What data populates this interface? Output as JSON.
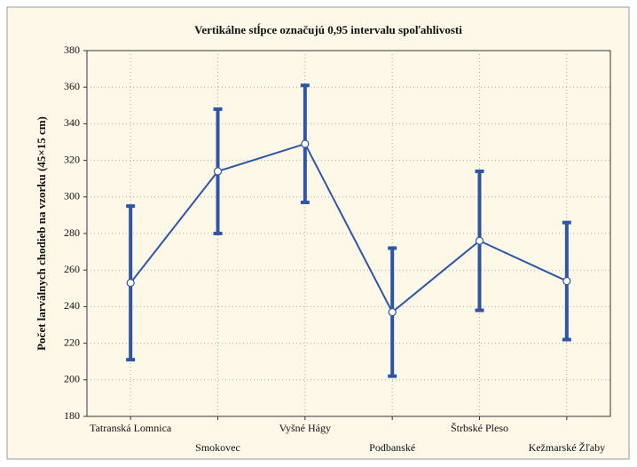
{
  "chart_data": {
    "type": "line",
    "title": "Vertikálne stĺpce označujú 0,95 intervalu spoľahlivosti",
    "y_label": "Počet larválnych chodieb na vzorku (45×15 cm)",
    "categories": [
      "Tatranská Lomnica",
      "Smokovec",
      "Vyšné Hágy",
      "Podbanské",
      "Štrbské Pleso",
      "Kežmarské Žľaby"
    ],
    "series": [
      {
        "color": "#2f56a6",
        "values": [
          253,
          314,
          329,
          237,
          276,
          254
        ],
        "errors": [
          42,
          34,
          32,
          35,
          38,
          32
        ]
      }
    ],
    "ylim": [
      180,
      380
    ],
    "yticks": [
      180,
      200,
      220,
      240,
      260,
      280,
      300,
      320,
      340,
      360,
      380
    ],
    "grid": true
  }
}
